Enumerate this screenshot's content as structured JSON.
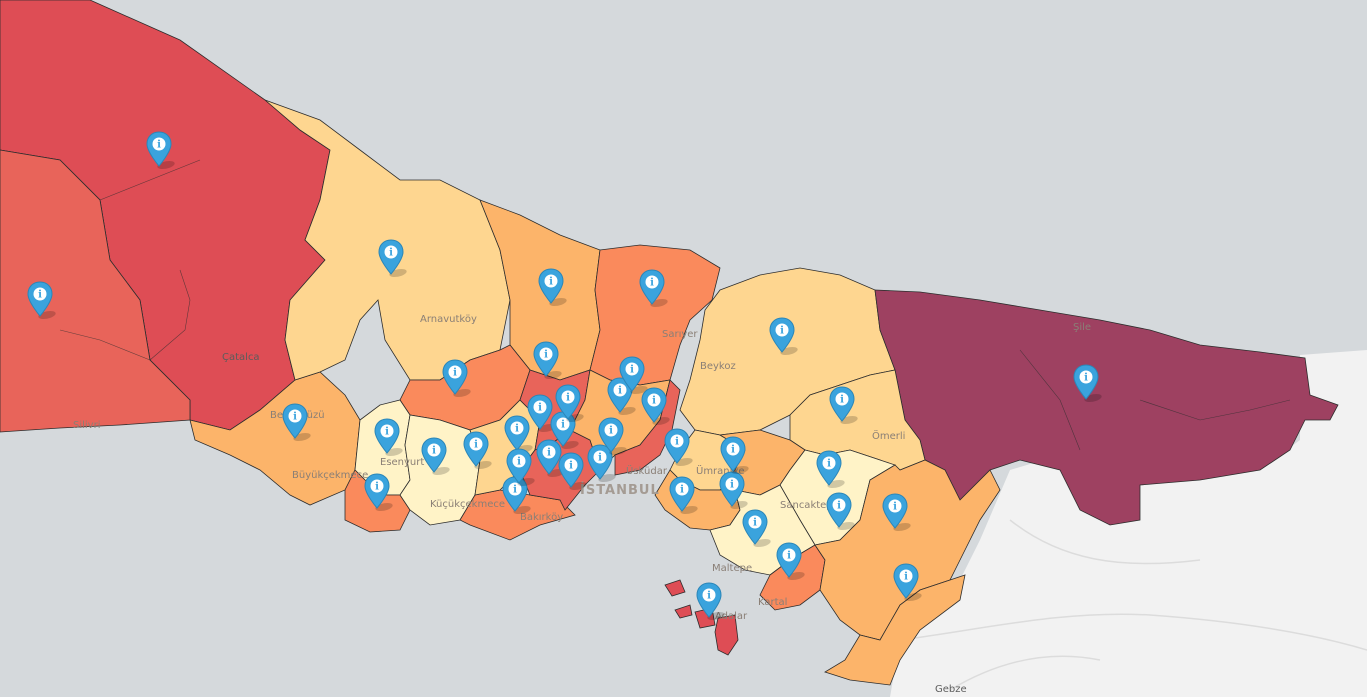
{
  "map": {
    "type": "choropleth",
    "colors": {
      "sea": "#d5d9dc",
      "other_land": "#f2f2f2",
      "tier1": "#fff3c7",
      "tier2": "#fed690",
      "tier3": "#fcb46a",
      "tier4": "#fa8a5c",
      "tier5": "#e8645a",
      "tier6": "#de4d55",
      "tier7": "#9e4161",
      "boundary": "#2d2d2d",
      "marker": "#3aa3dd"
    },
    "labels": {
      "catalca": "Çatalca",
      "silivri": "Silivri",
      "arnavutkoy": "Arnavutköy",
      "sariyer": "Sarıyer",
      "beykoz": "Beykoz",
      "sile": "Şile",
      "buyukcekmece": "Büyükçekmece",
      "beylikduzu": "Beylikdüzü",
      "esenyurt": "Esenyurt",
      "kucukcekmece": "Küçükçekmece",
      "bakirkoy": "Bakırköy",
      "istanbul": "İSTANBUL",
      "uskudar": "Üsküdar",
      "umraniye": "Ümraniye",
      "sancaktepe": "Sancaktepe",
      "maltepe": "Maltepe",
      "kartal": "Kartal",
      "adalar": "Adalar",
      "omerli": "Ömerli",
      "gebze": "Gebze"
    },
    "marker_count": 39,
    "marker_icon": "info-icon",
    "marker_symbol": "i"
  }
}
